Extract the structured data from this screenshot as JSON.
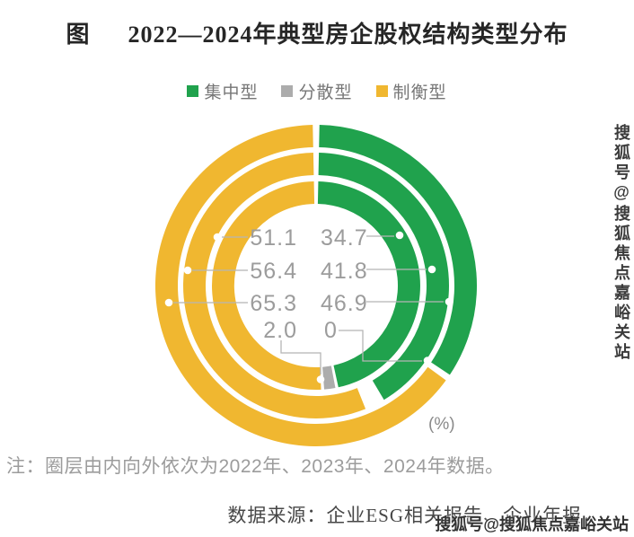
{
  "title": {
    "prefix": "图",
    "text": "2022—2024年典型房企股权结构类型分布"
  },
  "legend": [
    {
      "label": "集中型",
      "color": "#20A24D"
    },
    {
      "label": "分散型",
      "color": "#ACACAC"
    },
    {
      "label": "制衡型",
      "color": "#F0B730"
    }
  ],
  "unit_label": "(%)",
  "note": "注：圈层由内向外依次为2022年、2023年、2024年数据。",
  "source": "数据来源：企业ESG相关报告、企业年报。",
  "watermark": "搜狐号@搜狐焦点嘉峪关站",
  "chart_data": {
    "type": "pie",
    "subtype": "nested-donut",
    "unit": "%",
    "title": "2022—2024年典型房企股权结构类型分布",
    "categories": [
      "集中型",
      "分散型",
      "制衡型"
    ],
    "ring_order_note": "圈层由内向外依次为2022年、2023年、2024年数据",
    "rings": [
      {
        "year": "2022",
        "position": "inner",
        "values": {
          "集中型": 46.9,
          "分散型": 2.0,
          "制衡型": 51.1
        }
      },
      {
        "year": "2023",
        "position": "middle",
        "values": {
          "集中型": 41.8,
          "分散型": 1.8,
          "制衡型": 56.4
        }
      },
      {
        "year": "2024",
        "position": "outer",
        "values": {
          "集中型": 34.7,
          "分散型": 0,
          "制衡型": 65.3
        }
      }
    ],
    "labeled_values": {
      "制衡型_inner_to_outer": [
        51.1,
        56.4,
        65.3
      ],
      "集中型_top_to_bottom_labels": [
        34.7,
        41.8,
        46.9
      ],
      "分散型_labels": [
        2.0,
        0
      ]
    },
    "legend_position": "top",
    "start_angle": "12-oclock, clockwise: 集中型 → 分散型 → 制衡型"
  }
}
